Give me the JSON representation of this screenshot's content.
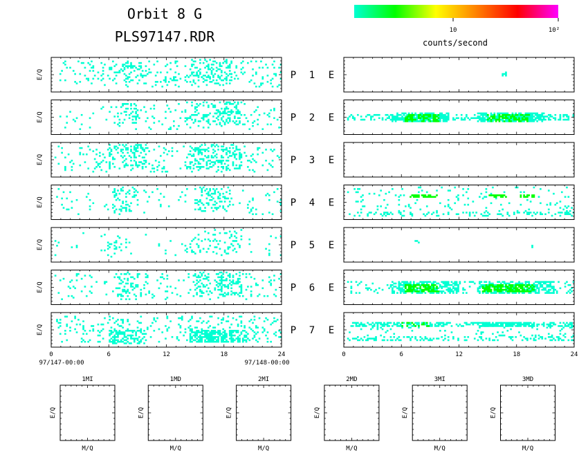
{
  "header": {
    "title_line1": "Orbit 8 G",
    "title_line2": "PLS97147.RDR"
  },
  "colorbar": {
    "stops": [
      "#00ffd2",
      "#00ff00",
      "#ffff00",
      "#ff8000",
      "#ff0000",
      "#ff00ff"
    ],
    "tick_labels": [
      "10",
      "10²"
    ],
    "label": "counts/second"
  },
  "rows": [
    {
      "p": "P",
      "num": "1",
      "e": "E"
    },
    {
      "p": "P",
      "num": "2",
      "e": "E"
    },
    {
      "p": "P",
      "num": "3",
      "e": "E"
    },
    {
      "p": "P",
      "num": "4",
      "e": "E"
    },
    {
      "p": "P",
      "num": "5",
      "e": "E"
    },
    {
      "p": "P",
      "num": "6",
      "e": "E"
    },
    {
      "p": "P",
      "num": "7",
      "e": "E"
    }
  ],
  "ylabel": "E/Q",
  "chart_data": {
    "type": "heatmap",
    "x_ticks": [
      "0",
      "6",
      "12",
      "18",
      "24"
    ],
    "xlim": [
      0,
      24
    ],
    "x_start_label": "97/147-00:00",
    "x_end_label": "97/148-00:00",
    "colors": {
      "low": "#00ffd2",
      "mid": "#00ff00",
      "high": "#ffff00"
    },
    "left_panels": [
      {
        "name": "P1",
        "bands": [
          {
            "x": [
              0.5,
              24
            ],
            "y": [
              0.1,
              0.9
            ],
            "level": 1,
            "density": 0.09
          },
          {
            "x": [
              6,
              10
            ],
            "y": [
              0.3,
              0.9
            ],
            "level": 1,
            "density": 0.18
          },
          {
            "x": [
              14.5,
              19
            ],
            "y": [
              0.2,
              0.95
            ],
            "level": 1,
            "density": 0.22
          }
        ]
      },
      {
        "name": "P2",
        "bands": [
          {
            "x": [
              0.5,
              24
            ],
            "y": [
              0.1,
              0.9
            ],
            "level": 1,
            "density": 0.05
          },
          {
            "x": [
              7,
              9
            ],
            "y": [
              0.3,
              0.9
            ],
            "level": 1,
            "density": 0.15
          },
          {
            "x": [
              14,
              20
            ],
            "y": [
              0.2,
              0.95
            ],
            "level": 1,
            "density": 0.22
          }
        ]
      },
      {
        "name": "P3",
        "bands": [
          {
            "x": [
              0.5,
              24
            ],
            "y": [
              0.1,
              0.9
            ],
            "level": 1,
            "density": 0.08
          },
          {
            "x": [
              6,
              10
            ],
            "y": [
              0.2,
              0.95
            ],
            "level": 1,
            "density": 0.22
          },
          {
            "x": [
              14.5,
              20
            ],
            "y": [
              0.2,
              0.95
            ],
            "level": 1,
            "density": 0.28
          }
        ]
      },
      {
        "name": "P4",
        "bands": [
          {
            "x": [
              0.5,
              24
            ],
            "y": [
              0.1,
              0.9
            ],
            "level": 1,
            "density": 0.04
          },
          {
            "x": [
              6.5,
              9
            ],
            "y": [
              0.2,
              0.95
            ],
            "level": 1,
            "density": 0.16
          },
          {
            "x": [
              15,
              19
            ],
            "y": [
              0.2,
              0.95
            ],
            "level": 1,
            "density": 0.2
          }
        ]
      },
      {
        "name": "P5",
        "bands": [
          {
            "x": [
              0.5,
              24
            ],
            "y": [
              0.1,
              0.9
            ],
            "level": 1,
            "density": 0.02
          },
          {
            "x": [
              5.5,
              9
            ],
            "y": [
              0.2,
              0.8
            ],
            "level": 1,
            "density": 0.07
          },
          {
            "x": [
              14,
              20
            ],
            "y": [
              0.2,
              0.95
            ],
            "level": 1,
            "density": 0.1
          }
        ]
      },
      {
        "name": "P6",
        "bands": [
          {
            "x": [
              0.5,
              24
            ],
            "y": [
              0.1,
              0.9
            ],
            "level": 1,
            "density": 0.06
          },
          {
            "x": [
              7,
              9.5
            ],
            "y": [
              0.2,
              0.95
            ],
            "level": 1,
            "density": 0.22
          },
          {
            "x": [
              15,
              20
            ],
            "y": [
              0.2,
              0.95
            ],
            "level": 1,
            "density": 0.26
          }
        ]
      },
      {
        "name": "P7",
        "bands": [
          {
            "x": [
              0.5,
              24
            ],
            "y": [
              0.1,
              0.9
            ],
            "level": 1,
            "density": 0.12
          },
          {
            "x": [
              6,
              10
            ],
            "y": [
              0.05,
              0.5
            ],
            "level": 1,
            "density": 0.45
          },
          {
            "x": [
              14.5,
              20.5
            ],
            "y": [
              0.1,
              0.5
            ],
            "level": 1,
            "density": 0.55
          }
        ]
      }
    ],
    "right_panels": [
      {
        "name": "E1",
        "bands": [
          {
            "x": [
              16.5,
              17
            ],
            "y": [
              0.45,
              0.55
            ],
            "level": 1,
            "density": 0.5
          }
        ]
      },
      {
        "name": "E2",
        "bands": [
          {
            "x": [
              0.5,
              24
            ],
            "y": [
              0.4,
              0.55
            ],
            "level": 1,
            "density": 0.4
          },
          {
            "x": [
              5,
              11
            ],
            "y": [
              0.35,
              0.6
            ],
            "level": 1,
            "density": 0.6
          },
          {
            "x": [
              6.5,
              10
            ],
            "y": [
              0.35,
              0.55
            ],
            "level": 2,
            "density": 0.55
          },
          {
            "x": [
              14,
              21
            ],
            "y": [
              0.35,
              0.6
            ],
            "level": 1,
            "density": 0.6
          },
          {
            "x": [
              15,
              19.5
            ],
            "y": [
              0.35,
              0.55
            ],
            "level": 2,
            "density": 0.55
          }
        ]
      },
      {
        "name": "E3",
        "bands": []
      },
      {
        "name": "E4",
        "bands": [
          {
            "x": [
              0.5,
              24
            ],
            "y": [
              0.1,
              0.95
            ],
            "level": 1,
            "density": 0.06
          },
          {
            "x": [
              0.5,
              24
            ],
            "y": [
              0.05,
              0.2
            ],
            "level": 1,
            "density": 0.18
          },
          {
            "x": [
              7,
              10
            ],
            "y": [
              0.6,
              0.72
            ],
            "level": 2,
            "density": 0.7
          },
          {
            "x": [
              15,
              17
            ],
            "y": [
              0.6,
              0.72
            ],
            "level": 2,
            "density": 0.6
          },
          {
            "x": [
              18.5,
              20
            ],
            "y": [
              0.6,
              0.72
            ],
            "level": 2,
            "density": 0.6
          }
        ]
      },
      {
        "name": "E5",
        "bands": [
          {
            "x": [
              7.5,
              8
            ],
            "y": [
              0.5,
              0.6
            ],
            "level": 1,
            "density": 0.4
          },
          {
            "x": [
              19.5,
              20
            ],
            "y": [
              0.4,
              0.5
            ],
            "level": 1,
            "density": 0.4
          }
        ]
      },
      {
        "name": "E6",
        "bands": [
          {
            "x": [
              0.5,
              24
            ],
            "y": [
              0.3,
              0.65
            ],
            "level": 1,
            "density": 0.15
          },
          {
            "x": [
              5,
              12
            ],
            "y": [
              0.3,
              0.65
            ],
            "level": 1,
            "density": 0.5
          },
          {
            "x": [
              6.5,
              10
            ],
            "y": [
              0.35,
              0.55
            ],
            "level": 2,
            "density": 0.6
          },
          {
            "x": [
              14,
              22
            ],
            "y": [
              0.3,
              0.65
            ],
            "level": 1,
            "density": 0.5
          },
          {
            "x": [
              14.5,
              20
            ],
            "y": [
              0.35,
              0.55
            ],
            "level": 2,
            "density": 0.6
          }
        ]
      },
      {
        "name": "E7",
        "bands": [
          {
            "x": [
              0.5,
              24
            ],
            "y": [
              0.55,
              0.72
            ],
            "level": 1,
            "density": 0.45
          },
          {
            "x": [
              0.5,
              24
            ],
            "y": [
              0.15,
              0.3
            ],
            "level": 1,
            "density": 0.35
          },
          {
            "x": [
              6,
              9
            ],
            "y": [
              0.55,
              0.7
            ],
            "level": 2,
            "density": 0.4
          },
          {
            "x": [
              14,
              20
            ],
            "y": [
              0.55,
              0.72
            ],
            "level": 1,
            "density": 0.7
          },
          {
            "x": [
              0.5,
              24
            ],
            "y": [
              0.3,
              0.55
            ],
            "level": 1,
            "density": 0.05
          }
        ]
      }
    ]
  },
  "small_panels": [
    {
      "title": "1MI",
      "xlabel": "M/Q",
      "ylabel": "E/Q"
    },
    {
      "title": "1MD",
      "xlabel": "M/Q",
      "ylabel": "E/Q"
    },
    {
      "title": "2MI",
      "xlabel": "M/Q",
      "ylabel": "E/Q"
    },
    {
      "title": "2MD",
      "xlabel": "M/Q",
      "ylabel": "E/Q"
    },
    {
      "title": "3MI",
      "xlabel": "M/Q",
      "ylabel": "E/Q"
    },
    {
      "title": "3MD",
      "xlabel": "M/Q",
      "ylabel": "E/Q"
    }
  ]
}
